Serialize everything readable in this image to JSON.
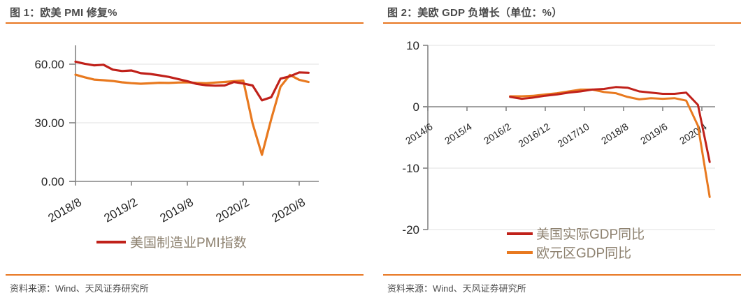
{
  "panels": [
    {
      "title": "图 1：欧美 PMI 修复%",
      "source": "资料来源：Wind、天风证券研究所"
    },
    {
      "title": "图 2：美欧 GDP 负增长（单位：%）",
      "source": "资料来源：Wind、天风证券研究所"
    }
  ],
  "colors": {
    "accent_rule": "#e87722",
    "series_red": "#c0211a",
    "series_orange": "#e8791f",
    "axis": "#848484",
    "gridline": "#e0e0e0",
    "tick_label": "#262626",
    "title_text": "#4a4a4a",
    "source_text": "#4d4d4d",
    "legend_text": "#8e8270"
  },
  "chart_data": [
    {
      "type": "line",
      "title": "图 1：欧美 PMI 修复%",
      "grid": true,
      "legend_position": "bottom-center",
      "x_axis": {
        "unit": "month",
        "start": "2018/8",
        "tick_labels": [
          "2018/8",
          "2019/2",
          "2019/8",
          "2020/2",
          "2020/8"
        ],
        "tick_month_offsets": [
          0,
          6,
          12,
          18,
          24
        ]
      },
      "y_axis": {
        "tick_labels": [
          "0.00",
          "30.00",
          "60.00"
        ],
        "tick_values": [
          0,
          30,
          60
        ],
        "range": [
          0,
          70
        ]
      },
      "x_labels": [
        "2018/8",
        "2018/9",
        "2018/10",
        "2018/11",
        "2018/12",
        "2019/1",
        "2019/2",
        "2019/3",
        "2019/4",
        "2019/5",
        "2019/6",
        "2019/7",
        "2019/8",
        "2019/9",
        "2019/10",
        "2019/11",
        "2019/12",
        "2020/1",
        "2020/2",
        "2020/3",
        "2020/4",
        "2020/5",
        "2020/6",
        "2020/7",
        "2020/8",
        "2020/9"
      ],
      "series": [
        {
          "name": "美国制造业PMI指数",
          "in_legend": true,
          "color_key": "series_red",
          "start_month_offset": 0,
          "step_months": 1,
          "values": [
            61.3,
            60.2,
            59.4,
            59.7,
            57.2,
            56.5,
            56.8,
            55.4,
            55.0,
            54.3,
            53.5,
            52.4,
            51.3,
            49.9,
            49.2,
            49.0,
            49.1,
            50.9,
            50.1,
            49.1,
            41.5,
            43.1,
            52.6,
            53.8,
            55.8,
            55.6
          ]
        },
        {
          "name": "",
          "in_legend": false,
          "color_key": "series_orange",
          "start_month_offset": 0,
          "step_months": 1,
          "values": [
            54.6,
            53.3,
            52.1,
            51.8,
            51.4,
            50.7,
            50.3,
            50.0,
            50.2,
            50.5,
            50.4,
            50.6,
            50.7,
            50.4,
            50.2,
            50.6,
            50.9,
            51.3,
            51.6,
            29.7,
            13.6,
            31.9,
            48.5,
            54.5,
            52.0,
            50.9
          ]
        }
      ]
    },
    {
      "type": "line",
      "title": "图 2：美欧 GDP 负增长（单位：%）",
      "grid": true,
      "legend_position": "bottom-center",
      "x_axis": {
        "unit": "month",
        "start": "2014/6",
        "tick_labels": [
          "2014/6",
          "2015/4",
          "2016/2",
          "2016/12",
          "2017/10",
          "2018/8",
          "2019/6",
          "2020/4"
        ],
        "tick_month_offsets": [
          0,
          10,
          20,
          30,
          40,
          50,
          60,
          70
        ]
      },
      "y_axis": {
        "tick_labels": [
          "-20",
          "-10",
          "0",
          "10"
        ],
        "tick_values": [
          -20,
          -10,
          0,
          10
        ],
        "range": [
          -20,
          10
        ]
      },
      "x_labels": [
        "2016/3",
        "2016/6",
        "2016/9",
        "2016/12",
        "2017/3",
        "2017/6",
        "2017/9",
        "2017/12",
        "2018/3",
        "2018/6",
        "2018/9",
        "2018/12",
        "2019/3",
        "2019/6",
        "2019/9",
        "2019/12",
        "2020/3",
        "2020/6"
      ],
      "series": [
        {
          "name": "美国实际GDP同比",
          "in_legend": true,
          "color_key": "series_red",
          "start_month_offset": 21,
          "step_months": 3,
          "values": [
            1.6,
            1.3,
            1.5,
            1.8,
            2.0,
            2.3,
            2.5,
            2.8,
            2.9,
            3.2,
            3.1,
            2.5,
            2.3,
            2.1,
            2.1,
            2.3,
            0.3,
            -9.0
          ]
        },
        {
          "name": "欧元区GDP同比",
          "in_legend": true,
          "color_key": "series_orange",
          "start_month_offset": 21,
          "step_months": 3,
          "values": [
            1.7,
            1.7,
            1.8,
            2.0,
            2.2,
            2.5,
            2.8,
            2.8,
            2.4,
            2.2,
            1.6,
            1.2,
            1.4,
            1.3,
            1.4,
            1.0,
            -3.1,
            -14.7
          ]
        }
      ]
    }
  ]
}
